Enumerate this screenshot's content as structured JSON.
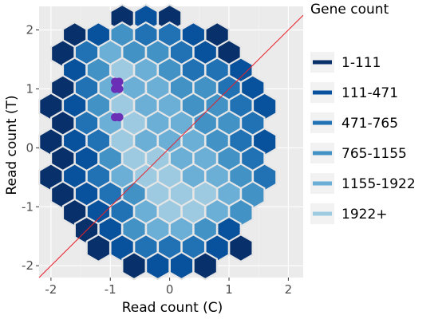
{
  "chart_data": {
    "type": "hexbin",
    "xlabel": "Read count (C)",
    "ylabel": "Read count (T)",
    "xlim": [
      -2.2,
      2.25
    ],
    "ylim": [
      -2.2,
      2.4
    ],
    "x_ticks": [
      -2,
      -1,
      0,
      1,
      2
    ],
    "y_ticks": [
      -2,
      -1,
      0,
      1,
      2
    ],
    "grid": true,
    "legend": {
      "title": "Gene count",
      "position": "right",
      "entries": [
        {
          "label": "1-111",
          "color": "#08306b"
        },
        {
          "label": "111-471",
          "color": "#08519c"
        },
        {
          "label": "471-765",
          "color": "#2171b5"
        },
        {
          "label": "765-1155",
          "color": "#4292c6"
        },
        {
          "label": "1155-1922",
          "color": "#6baed6"
        },
        {
          "label": "1922+",
          "color": "#9ecae1"
        }
      ]
    },
    "hex_bins": [
      {
        "y": 2.2,
        "x": [
          -0.8,
          -0.4,
          0.0
        ],
        "bin": [
          0,
          1,
          0
        ]
      },
      {
        "y": 1.9,
        "x": [
          -1.6,
          -1.2,
          -0.8,
          -0.4,
          0.0,
          0.4,
          0.8
        ],
        "bin": [
          0,
          1,
          3,
          2,
          2,
          1,
          0
        ]
      },
      {
        "y": 1.6,
        "x": [
          -1.8,
          -1.4,
          -1.0,
          -0.6,
          -0.2,
          0.2,
          0.6,
          1.0
        ],
        "bin": [
          0,
          2,
          4,
          3,
          3,
          2,
          1,
          0
        ]
      },
      {
        "y": 1.3,
        "x": [
          -1.6,
          -1.2,
          -0.8,
          -0.4,
          0.0,
          0.4,
          0.8,
          1.2
        ],
        "bin": [
          1,
          3,
          5,
          4,
          3,
          2,
          2,
          1
        ]
      },
      {
        "y": 1.0,
        "x": [
          -1.8,
          -1.4,
          -1.0,
          -0.6,
          -0.2,
          0.2,
          0.6,
          1.0,
          1.4
        ],
        "bin": [
          0,
          2,
          4,
          4,
          4,
          3,
          3,
          2,
          1
        ]
      },
      {
        "y": 0.7,
        "x": [
          -2.0,
          -1.6,
          -1.2,
          -0.8,
          -0.4,
          0.0,
          0.4,
          0.8,
          1.2,
          1.6
        ],
        "bin": [
          0,
          1,
          3,
          5,
          4,
          4,
          3,
          3,
          2,
          1
        ]
      },
      {
        "y": 0.4,
        "x": [
          -1.8,
          -1.4,
          -1.0,
          -0.6,
          -0.2,
          0.2,
          0.6,
          1.0,
          1.4
        ],
        "bin": [
          0,
          2,
          4,
          5,
          4,
          4,
          3,
          3,
          2
        ]
      },
      {
        "y": 0.1,
        "x": [
          -2.0,
          -1.6,
          -1.2,
          -0.8,
          -0.4,
          0.0,
          0.4,
          0.8,
          1.2,
          1.6
        ],
        "bin": [
          0,
          1,
          2,
          5,
          4,
          4,
          4,
          3,
          2,
          1
        ]
      },
      {
        "y": -0.2,
        "x": [
          -1.8,
          -1.4,
          -1.0,
          -0.6,
          -0.2,
          0.2,
          0.6,
          1.0,
          1.4
        ],
        "bin": [
          0,
          1,
          3,
          5,
          5,
          4,
          4,
          3,
          2
        ]
      },
      {
        "y": -0.5,
        "x": [
          -2.0,
          -1.6,
          -1.2,
          -0.8,
          -0.4,
          0.0,
          0.4,
          0.8,
          1.2,
          1.6
        ],
        "bin": [
          0,
          1,
          2,
          4,
          5,
          5,
          4,
          4,
          3,
          2
        ]
      },
      {
        "y": -0.8,
        "x": [
          -1.8,
          -1.4,
          -1.0,
          -0.6,
          -0.2,
          0.2,
          0.6,
          1.0,
          1.4
        ],
        "bin": [
          0,
          1,
          2,
          3,
          5,
          5,
          5,
          4,
          3
        ]
      },
      {
        "y": -1.1,
        "x": [
          -1.6,
          -1.2,
          -0.8,
          -0.4,
          0.0,
          0.4,
          0.8,
          1.2
        ],
        "bin": [
          0,
          1,
          2,
          4,
          5,
          5,
          4,
          3
        ]
      },
      {
        "y": -1.4,
        "x": [
          -1.4,
          -1.0,
          -0.6,
          -0.2,
          0.2,
          0.6,
          1.0
        ],
        "bin": [
          0,
          1,
          3,
          4,
          4,
          3,
          1
        ]
      },
      {
        "y": -1.7,
        "x": [
          -1.2,
          -0.8,
          -0.4,
          0.0,
          0.4,
          0.8,
          1.2
        ],
        "bin": [
          0,
          1,
          2,
          2,
          2,
          1,
          0
        ]
      },
      {
        "y": -2.0,
        "x": [
          -0.6,
          -0.2,
          0.2,
          0.6
        ],
        "bin": [
          0,
          1,
          1,
          0
        ]
      }
    ],
    "reference_line": {
      "slope": 1,
      "intercept": 0,
      "color": "#e8202a"
    },
    "highlight_points": {
      "color": "#6b2fb6",
      "points": [
        [
          -0.92,
          1.12
        ],
        [
          -0.85,
          1.12
        ],
        [
          -0.92,
          1.0
        ],
        [
          -0.85,
          1.0
        ],
        [
          -0.92,
          0.52
        ],
        [
          -0.85,
          0.52
        ]
      ]
    }
  }
}
